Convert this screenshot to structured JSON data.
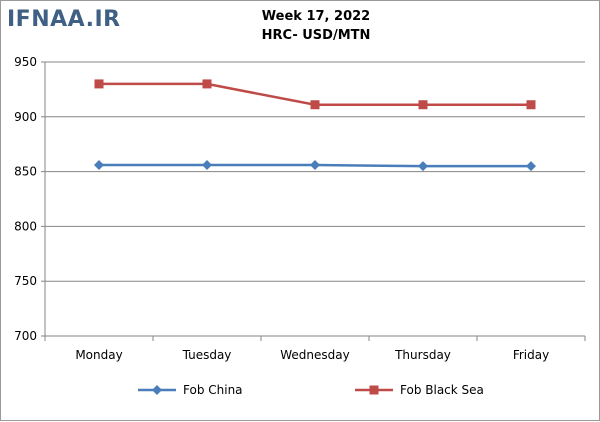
{
  "watermark": "IFNAA.IR",
  "chart_data": {
    "type": "line",
    "title": "Week 17, 2022",
    "subtitle": "HRC- USD/MTN",
    "categories": [
      "Monday",
      "Tuesday",
      "Wednesday",
      "Thursday",
      "Friday"
    ],
    "series": [
      {
        "name": "Fob China",
        "values": [
          856,
          856,
          856,
          855,
          855
        ],
        "color": "#4a7ebb",
        "marker": "diamond"
      },
      {
        "name": "Fob Black Sea",
        "values": [
          930,
          930,
          911,
          911,
          911
        ],
        "color": "#be4b48",
        "marker": "square"
      }
    ],
    "ylim": [
      700,
      950
    ],
    "yticks": [
      700,
      750,
      800,
      850,
      900,
      950
    ],
    "grid": "horizontal",
    "legend": "bottom"
  }
}
